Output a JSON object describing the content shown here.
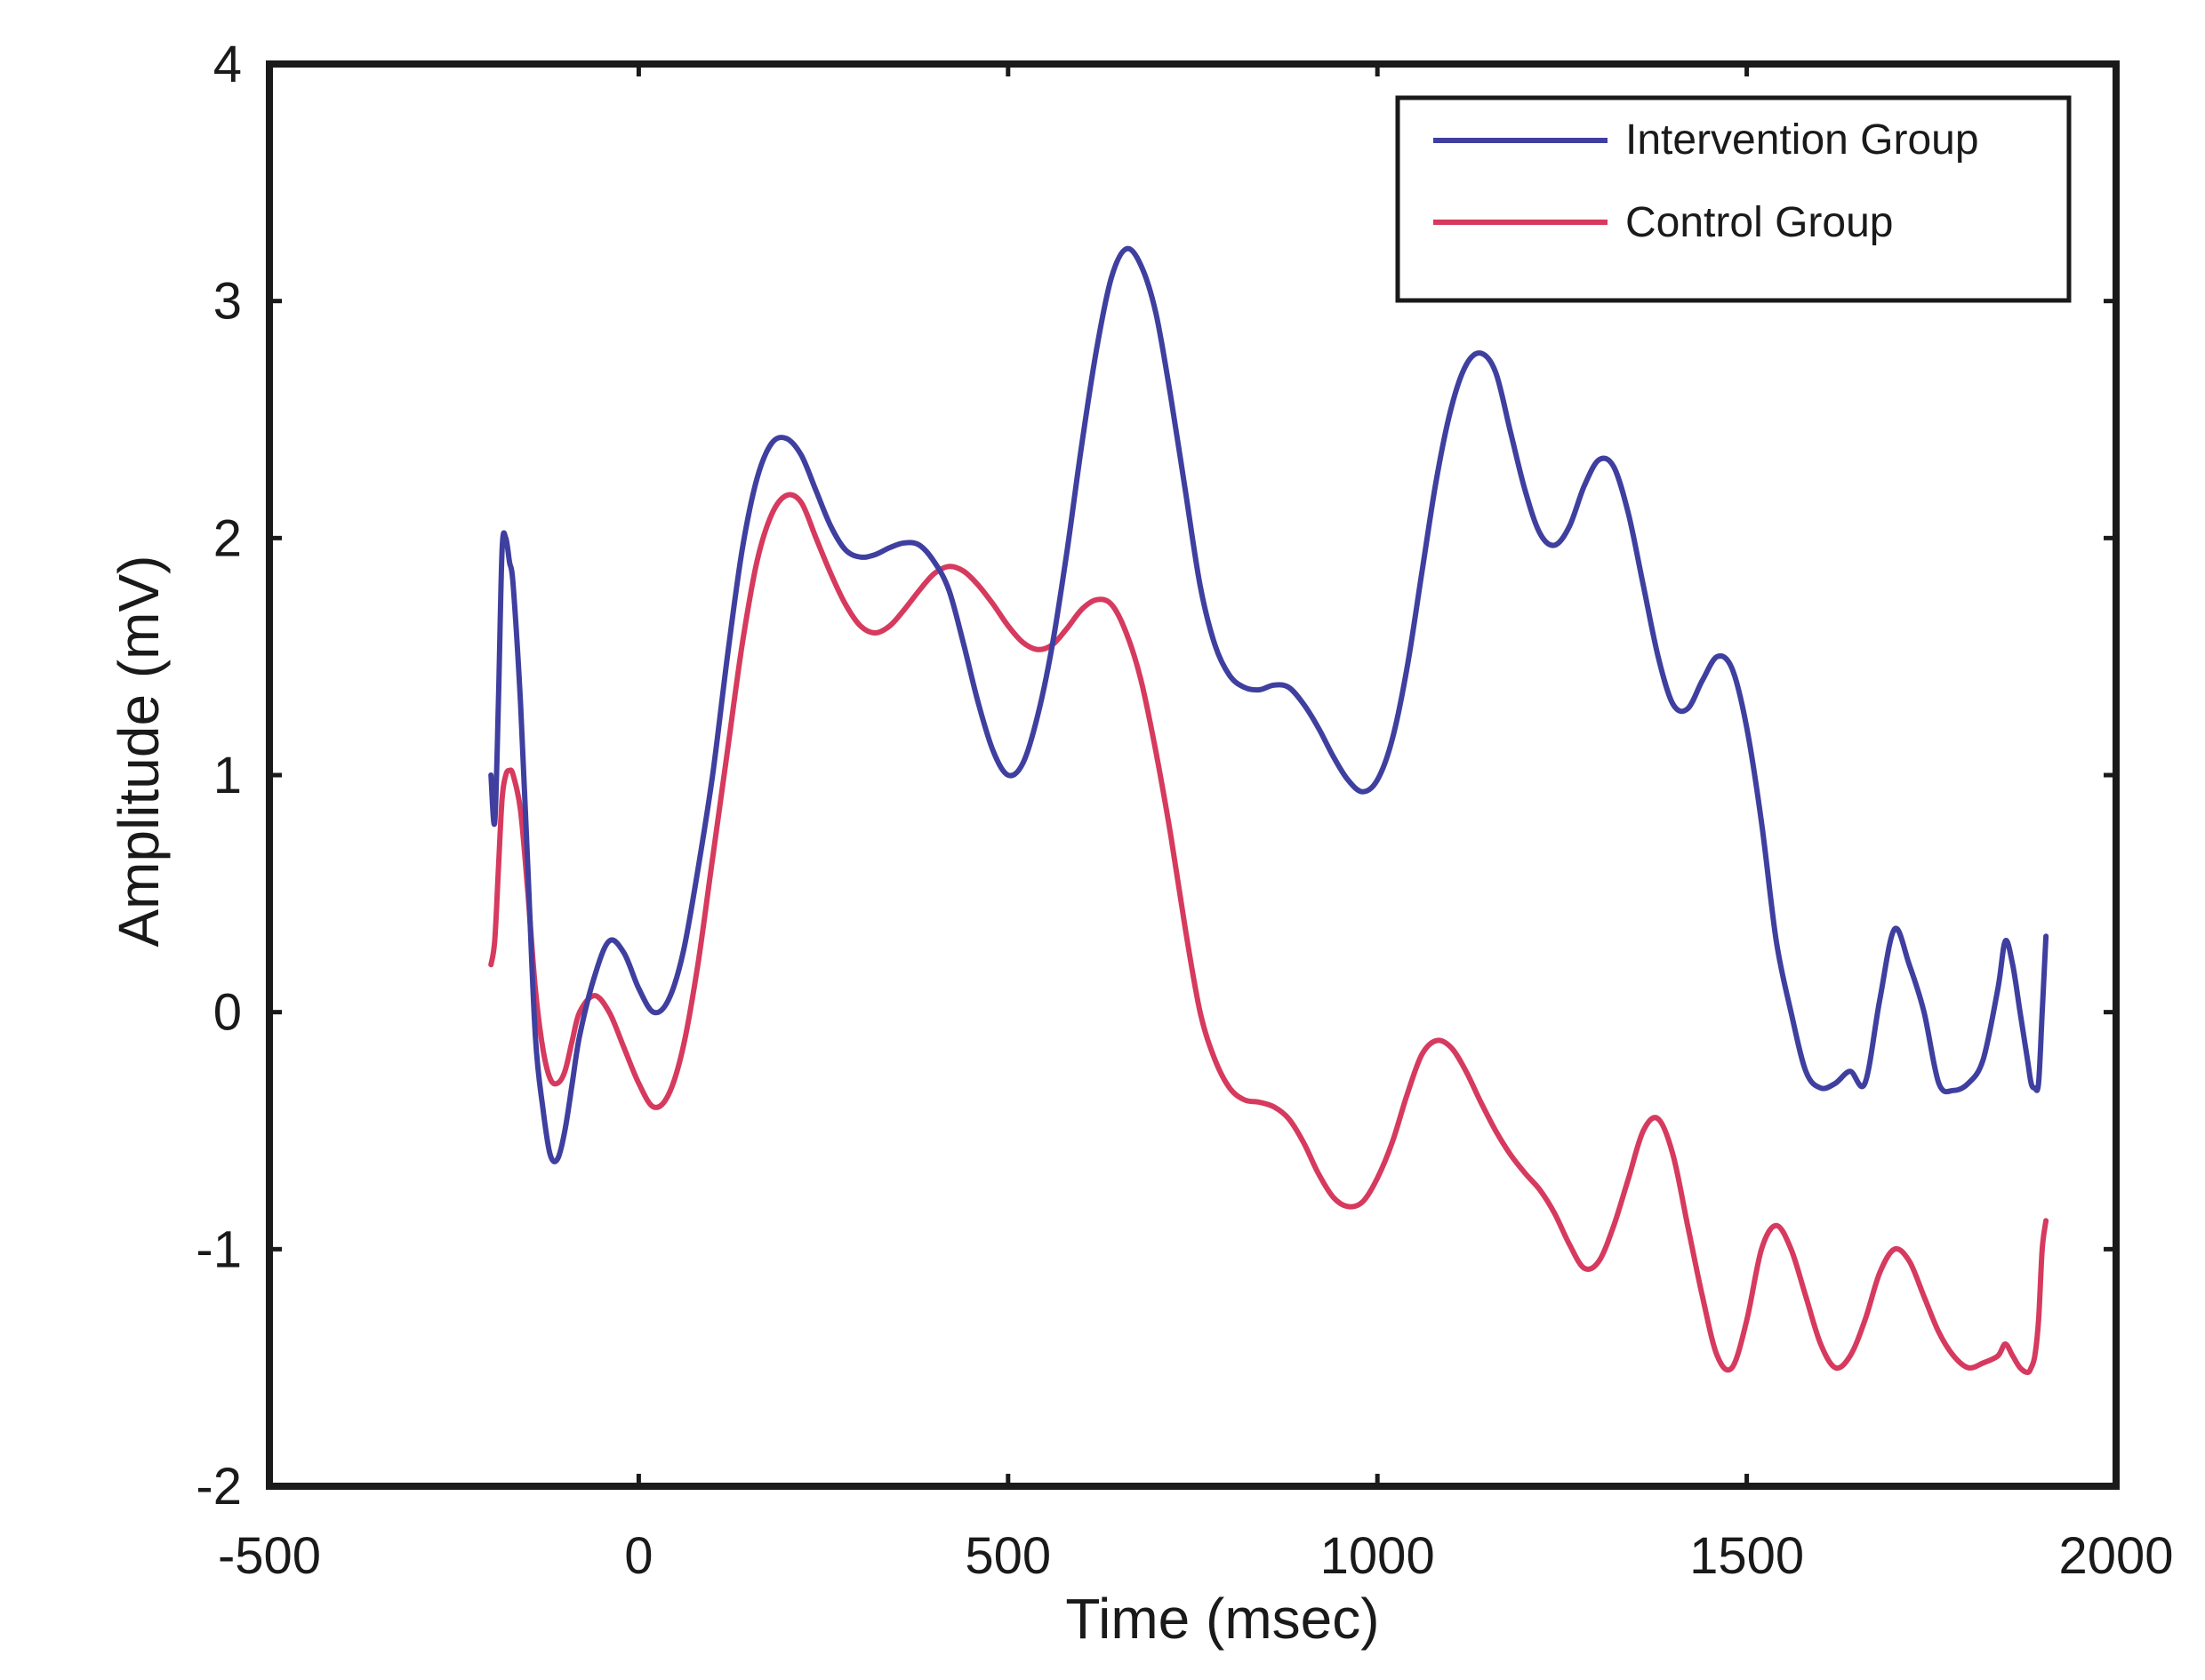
{
  "chart_data": {
    "type": "line",
    "title": "",
    "xlabel": "Time (msec)",
    "ylabel": "Amplitude (mV)",
    "xlim": [
      -500,
      2000
    ],
    "ylim": [
      -2,
      4
    ],
    "grid": false,
    "x_ticks": [
      -500,
      0,
      500,
      1000,
      1500,
      2000
    ],
    "x_tick_labels": [
      "-500",
      "0",
      "500",
      "1000",
      "1500",
      "2000"
    ],
    "y_ticks": [
      -2,
      -1,
      0,
      1,
      2,
      3,
      4
    ],
    "y_tick_labels": [
      "-2",
      "-1",
      "0",
      "1",
      "2",
      "3",
      "4"
    ],
    "legend": {
      "placement": "top-right"
    },
    "series": [
      {
        "name": "Intervention Group",
        "color": "#3f3fa0",
        "x": [
          -200,
          -195,
          -190,
          -185,
          -180,
          -175,
          -170,
          -160,
          -150,
          -140,
          -130,
          -120,
          -110,
          -100,
          -90,
          -80,
          -60,
          -40,
          -20,
          0,
          20,
          40,
          60,
          80,
          100,
          120,
          140,
          160,
          180,
          200,
          220,
          240,
          260,
          280,
          300,
          320,
          340,
          360,
          380,
          400,
          420,
          440,
          460,
          480,
          500,
          520,
          540,
          560,
          580,
          600,
          620,
          640,
          660,
          680,
          700,
          720,
          740,
          760,
          780,
          800,
          820,
          840,
          860,
          880,
          900,
          920,
          940,
          960,
          980,
          1000,
          1020,
          1040,
          1060,
          1080,
          1100,
          1120,
          1140,
          1160,
          1180,
          1200,
          1220,
          1240,
          1260,
          1280,
          1300,
          1320,
          1340,
          1360,
          1380,
          1400,
          1420,
          1440,
          1460,
          1480,
          1500,
          1520,
          1540,
          1560,
          1580,
          1600,
          1620,
          1640,
          1660,
          1680,
          1700,
          1720,
          1740,
          1760,
          1780,
          1800,
          1820,
          1840,
          1850,
          1860,
          1870,
          1880,
          1885,
          1890,
          1895,
          1900,
          1905
        ],
        "y": [
          1.0,
          0.8,
          1.3,
          1.95,
          2.0,
          1.9,
          1.8,
          1.3,
          0.6,
          -0.1,
          -0.4,
          -0.6,
          -0.62,
          -0.5,
          -0.3,
          -0.1,
          0.15,
          0.3,
          0.25,
          0.1,
          0.0,
          0.05,
          0.25,
          0.6,
          1.0,
          1.5,
          1.95,
          2.25,
          2.4,
          2.42,
          2.35,
          2.2,
          2.05,
          1.95,
          1.92,
          1.93,
          1.96,
          1.98,
          1.97,
          1.9,
          1.78,
          1.55,
          1.3,
          1.1,
          1.0,
          1.05,
          1.25,
          1.55,
          1.95,
          2.4,
          2.8,
          3.1,
          3.22,
          3.15,
          2.95,
          2.6,
          2.2,
          1.8,
          1.55,
          1.42,
          1.37,
          1.36,
          1.38,
          1.37,
          1.3,
          1.2,
          1.08,
          0.98,
          0.93,
          0.98,
          1.15,
          1.45,
          1.85,
          2.25,
          2.55,
          2.73,
          2.78,
          2.7,
          2.45,
          2.2,
          2.02,
          1.97,
          2.05,
          2.22,
          2.33,
          2.3,
          2.1,
          1.8,
          1.5,
          1.3,
          1.28,
          1.4,
          1.5,
          1.45,
          1.2,
          0.8,
          0.3,
          0.0,
          -0.25,
          -0.32,
          -0.3,
          -0.25,
          -0.3,
          0.05,
          0.35,
          0.2,
          0.0,
          -0.3,
          -0.33,
          -0.3,
          -0.2,
          0.1,
          0.3,
          0.2,
          0.0,
          -0.2,
          -0.3,
          -0.32,
          -0.3,
          0.0,
          0.32
        ]
      },
      {
        "name": "Control Group",
        "color": "#d63a5e",
        "x": [
          -200,
          -195,
          -190,
          -185,
          -180,
          -175,
          -170,
          -160,
          -150,
          -140,
          -130,
          -120,
          -110,
          -100,
          -90,
          -80,
          -60,
          -40,
          -20,
          0,
          20,
          40,
          60,
          80,
          100,
          120,
          140,
          160,
          180,
          200,
          220,
          240,
          260,
          280,
          300,
          320,
          340,
          360,
          380,
          400,
          420,
          440,
          460,
          480,
          500,
          520,
          540,
          560,
          580,
          600,
          620,
          640,
          660,
          680,
          700,
          720,
          740,
          760,
          780,
          800,
          820,
          840,
          860,
          880,
          900,
          920,
          940,
          960,
          980,
          1000,
          1020,
          1040,
          1060,
          1080,
          1100,
          1120,
          1140,
          1160,
          1180,
          1200,
          1220,
          1240,
          1260,
          1280,
          1300,
          1320,
          1340,
          1360,
          1380,
          1400,
          1420,
          1440,
          1460,
          1480,
          1500,
          1520,
          1540,
          1560,
          1580,
          1600,
          1620,
          1640,
          1660,
          1680,
          1700,
          1720,
          1740,
          1760,
          1780,
          1800,
          1820,
          1840,
          1850,
          1860,
          1870,
          1880,
          1885,
          1890,
          1895,
          1900,
          1905
        ],
        "y": [
          0.2,
          0.3,
          0.6,
          0.9,
          1.0,
          1.02,
          1.0,
          0.85,
          0.5,
          0.1,
          -0.15,
          -0.28,
          -0.3,
          -0.25,
          -0.12,
          0.0,
          0.07,
          0.0,
          -0.15,
          -0.3,
          -0.4,
          -0.35,
          -0.15,
          0.2,
          0.65,
          1.1,
          1.55,
          1.9,
          2.1,
          2.18,
          2.15,
          2.0,
          1.85,
          1.72,
          1.63,
          1.6,
          1.63,
          1.7,
          1.78,
          1.85,
          1.88,
          1.86,
          1.8,
          1.72,
          1.63,
          1.56,
          1.53,
          1.55,
          1.62,
          1.7,
          1.74,
          1.72,
          1.6,
          1.4,
          1.1,
          0.75,
          0.35,
          0.0,
          -0.2,
          -0.32,
          -0.37,
          -0.38,
          -0.4,
          -0.45,
          -0.55,
          -0.68,
          -0.78,
          -0.82,
          -0.8,
          -0.7,
          -0.55,
          -0.35,
          -0.18,
          -0.12,
          -0.15,
          -0.25,
          -0.38,
          -0.5,
          -0.6,
          -0.68,
          -0.75,
          -0.85,
          -0.98,
          -1.08,
          -1.05,
          -0.9,
          -0.7,
          -0.5,
          -0.45,
          -0.6,
          -0.9,
          -1.2,
          -1.45,
          -1.5,
          -1.3,
          -1.0,
          -0.9,
          -1.0,
          -1.2,
          -1.4,
          -1.5,
          -1.45,
          -1.3,
          -1.1,
          -1.0,
          -1.05,
          -1.2,
          -1.35,
          -1.45,
          -1.5,
          -1.48,
          -1.45,
          -1.4,
          -1.45,
          -1.5,
          -1.52,
          -1.5,
          -1.45,
          -1.3,
          -1.0,
          -0.88
        ]
      }
    ]
  }
}
